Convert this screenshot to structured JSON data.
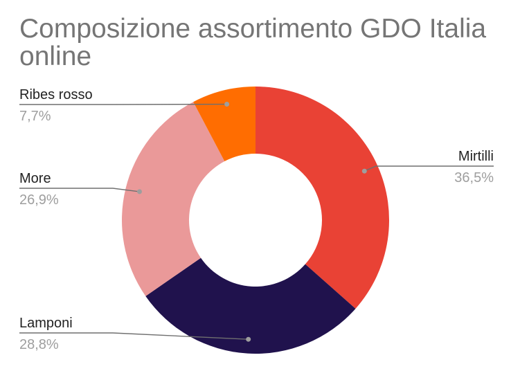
{
  "chart_data": {
    "type": "pie",
    "donut": true,
    "title": "Composizione assortimento GDO Italia online",
    "categories": [
      "Mirtilli",
      "Lamponi",
      "More",
      "Ribes rosso"
    ],
    "values": [
      36.5,
      28.8,
      26.9,
      7.7
    ],
    "labels": [
      "36,5%",
      "28,8%",
      "26,9%",
      "7,7%"
    ],
    "colors": [
      "#e94235",
      "#20124d",
      "#ea9999",
      "#ff6d01"
    ],
    "legend": "none"
  }
}
